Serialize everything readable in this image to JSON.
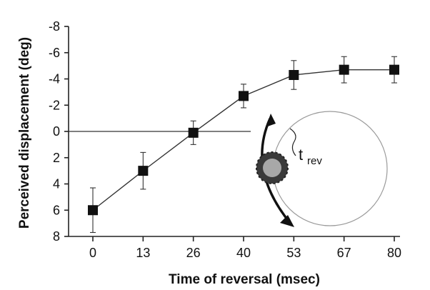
{
  "chart_data": {
    "type": "line",
    "xlabel": "Time of reversal (msec)",
    "ylabel": "Perceived displacement (deg)",
    "categories": [
      "0",
      "13",
      "26",
      "40",
      "53",
      "67",
      "80"
    ],
    "y_tick_labels": [
      "-8",
      "-6",
      "-4",
      "-2",
      "0",
      "2",
      "4",
      "6",
      "8"
    ],
    "ylim": [
      8,
      -8
    ],
    "y_axis_inverted": true,
    "reference_line_y": 0,
    "series": [
      {
        "x": [
          0,
          13,
          26,
          40,
          53,
          67,
          80
        ],
        "values": [
          6.0,
          3.0,
          0.1,
          -2.7,
          -4.3,
          -4.7,
          -4.7
        ],
        "error": [
          1.7,
          1.4,
          0.9,
          0.9,
          1.1,
          1.0,
          1.0
        ],
        "marker": "square"
      }
    ],
    "grid": false,
    "legend": "none",
    "inset": {
      "label_main": "t",
      "label_sub": "rev"
    }
  }
}
